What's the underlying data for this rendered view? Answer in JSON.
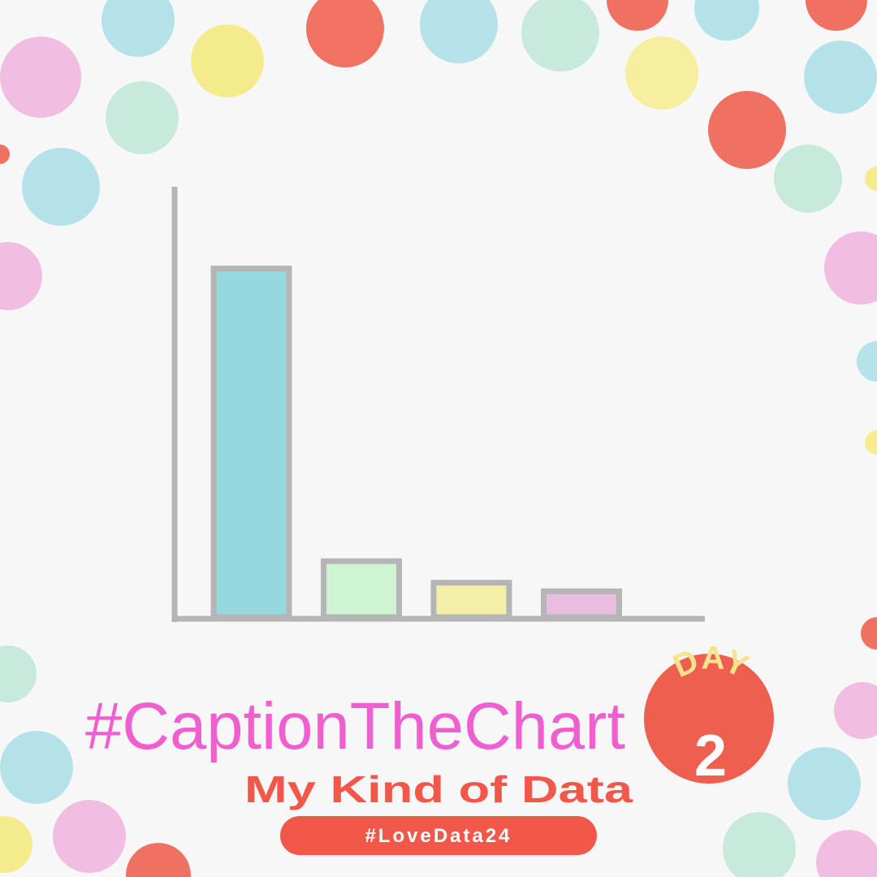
{
  "chart_data": {
    "type": "bar",
    "title": "#CaptionTheChart",
    "subtitle": "My Kind of Data",
    "hashtag": "#LoveData24",
    "badge": {
      "label": "DAY",
      "number": "2"
    },
    "values": [
      81,
      13,
      8,
      6
    ],
    "colors": [
      "#95d9e0",
      "#cdf5d1",
      "#f3efa8",
      "#e8bde0"
    ],
    "ylim": [
      0,
      100
    ]
  }
}
